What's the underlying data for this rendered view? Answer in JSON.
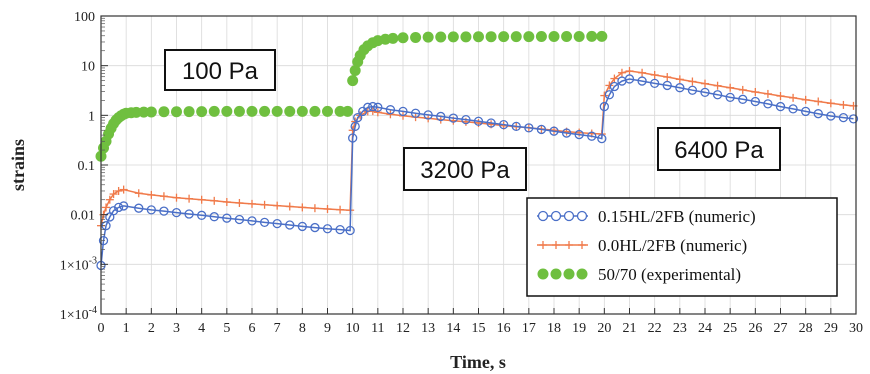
{
  "chart_data": {
    "type": "scatter",
    "title": "",
    "xlabel": "Time, s",
    "ylabel": "strains",
    "xlim": [
      0,
      30
    ],
    "ylim": [
      0.0001,
      100
    ],
    "yscale": "log",
    "xticks": [
      0,
      1,
      2,
      3,
      4,
      5,
      6,
      7,
      8,
      9,
      10,
      11,
      12,
      13,
      14,
      15,
      16,
      17,
      18,
      19,
      20,
      21,
      22,
      23,
      24,
      25,
      26,
      27,
      28,
      29,
      30
    ],
    "yticks": [
      {
        "value": 0.0001,
        "label": "1×10",
        "exp": "-4"
      },
      {
        "value": 0.001,
        "label": "1×10",
        "exp": "-3"
      },
      {
        "value": 0.01,
        "label": "0.01",
        "exp": ""
      },
      {
        "value": 0.1,
        "label": "0.1",
        "exp": ""
      },
      {
        "value": 1,
        "label": "1",
        "exp": ""
      },
      {
        "value": 10,
        "label": "10",
        "exp": ""
      },
      {
        "value": 100,
        "label": "100",
        "exp": ""
      }
    ],
    "grid": true,
    "legend_position": "bottom-right",
    "annotations": [
      "100 Pa",
      "3200 Pa",
      "6400 Pa"
    ],
    "series": [
      {
        "name": "0.15HL/2FB (numeric)",
        "color": "#4a6fc7",
        "marker": "open-circle",
        "points": [
          [
            0.0,
            0.00095
          ],
          [
            0.1,
            0.003
          ],
          [
            0.2,
            0.006
          ],
          [
            0.35,
            0.009
          ],
          [
            0.5,
            0.012
          ],
          [
            0.7,
            0.014
          ],
          [
            0.9,
            0.015
          ],
          [
            1.5,
            0.0135
          ],
          [
            2,
            0.0125
          ],
          [
            2.5,
            0.0118
          ],
          [
            3,
            0.011
          ],
          [
            3.5,
            0.0103
          ],
          [
            4,
            0.0097
          ],
          [
            4.5,
            0.0091
          ],
          [
            5,
            0.0085
          ],
          [
            5.5,
            0.008
          ],
          [
            6,
            0.0075
          ],
          [
            6.5,
            0.007
          ],
          [
            7,
            0.0066
          ],
          [
            7.5,
            0.0062
          ],
          [
            8,
            0.0058
          ],
          [
            8.5,
            0.0055
          ],
          [
            9,
            0.0052
          ],
          [
            9.5,
            0.005
          ],
          [
            9.9,
            0.0048
          ],
          [
            10.0,
            0.35
          ],
          [
            10.1,
            0.6
          ],
          [
            10.2,
            0.9
          ],
          [
            10.4,
            1.2
          ],
          [
            10.6,
            1.45
          ],
          [
            10.8,
            1.5
          ],
          [
            11,
            1.45
          ],
          [
            11.5,
            1.3
          ],
          [
            12,
            1.2
          ],
          [
            12.5,
            1.1
          ],
          [
            13,
            1.02
          ],
          [
            13.5,
            0.95
          ],
          [
            14,
            0.88
          ],
          [
            14.5,
            0.82
          ],
          [
            15,
            0.76
          ],
          [
            15.5,
            0.7
          ],
          [
            16,
            0.65
          ],
          [
            16.5,
            0.6
          ],
          [
            17,
            0.56
          ],
          [
            17.5,
            0.52
          ],
          [
            18,
            0.48
          ],
          [
            18.5,
            0.44
          ],
          [
            19,
            0.41
          ],
          [
            19.5,
            0.38
          ],
          [
            19.9,
            0.34
          ],
          [
            20.0,
            1.5
          ],
          [
            20.2,
            2.6
          ],
          [
            20.4,
            3.8
          ],
          [
            20.7,
            4.9
          ],
          [
            21,
            5.4
          ],
          [
            21.5,
            4.9
          ],
          [
            22,
            4.4
          ],
          [
            22.5,
            4.0
          ],
          [
            23,
            3.6
          ],
          [
            23.5,
            3.2
          ],
          [
            24,
            2.9
          ],
          [
            24.5,
            2.6
          ],
          [
            25,
            2.3
          ],
          [
            25.5,
            2.1
          ],
          [
            26,
            1.9
          ],
          [
            26.5,
            1.7
          ],
          [
            27,
            1.5
          ],
          [
            27.5,
            1.35
          ],
          [
            28,
            1.2
          ],
          [
            28.5,
            1.08
          ],
          [
            29,
            0.97
          ],
          [
            29.5,
            0.9
          ],
          [
            29.9,
            0.85
          ]
        ]
      },
      {
        "name": "0.0HL/2FB (numeric)",
        "color": "#f07a4a",
        "marker": "cross",
        "points": [
          [
            0.0,
            0.006
          ],
          [
            0.1,
            0.01
          ],
          [
            0.2,
            0.014
          ],
          [
            0.35,
            0.02
          ],
          [
            0.5,
            0.026
          ],
          [
            0.7,
            0.03
          ],
          [
            0.9,
            0.032
          ],
          [
            1.5,
            0.027
          ],
          [
            2,
            0.025
          ],
          [
            2.5,
            0.0235
          ],
          [
            3,
            0.022
          ],
          [
            3.5,
            0.021
          ],
          [
            4,
            0.02
          ],
          [
            4.5,
            0.019
          ],
          [
            5,
            0.018
          ],
          [
            5.5,
            0.0172
          ],
          [
            6,
            0.0165
          ],
          [
            6.5,
            0.0158
          ],
          [
            7,
            0.0152
          ],
          [
            7.5,
            0.0146
          ],
          [
            8,
            0.014
          ],
          [
            8.5,
            0.0135
          ],
          [
            9,
            0.013
          ],
          [
            9.5,
            0.0126
          ],
          [
            9.9,
            0.0123
          ],
          [
            10.0,
            0.5
          ],
          [
            10.1,
            0.75
          ],
          [
            10.3,
            1.0
          ],
          [
            10.6,
            1.2
          ],
          [
            10.8,
            1.22
          ],
          [
            11,
            1.15
          ],
          [
            11.5,
            1.05
          ],
          [
            12,
            0.98
          ],
          [
            12.5,
            0.92
          ],
          [
            13,
            0.87
          ],
          [
            13.5,
            0.82
          ],
          [
            14,
            0.78
          ],
          [
            14.5,
            0.74
          ],
          [
            15,
            0.7
          ],
          [
            15.5,
            0.66
          ],
          [
            16,
            0.62
          ],
          [
            16.5,
            0.59
          ],
          [
            17,
            0.56
          ],
          [
            17.5,
            0.53
          ],
          [
            18,
            0.5
          ],
          [
            18.5,
            0.47
          ],
          [
            19,
            0.45
          ],
          [
            19.5,
            0.43
          ],
          [
            19.9,
            0.42
          ],
          [
            20.0,
            2.5
          ],
          [
            20.2,
            4.0
          ],
          [
            20.4,
            5.5
          ],
          [
            20.7,
            7.2
          ],
          [
            21,
            7.8
          ],
          [
            21.5,
            7.2
          ],
          [
            22,
            6.5
          ],
          [
            22.5,
            5.9
          ],
          [
            23,
            5.3
          ],
          [
            23.5,
            4.8
          ],
          [
            24,
            4.35
          ],
          [
            24.5,
            3.95
          ],
          [
            25,
            3.6
          ],
          [
            25.5,
            3.25
          ],
          [
            26,
            2.95
          ],
          [
            26.5,
            2.7
          ],
          [
            27,
            2.45
          ],
          [
            27.5,
            2.25
          ],
          [
            28,
            2.05
          ],
          [
            28.5,
            1.9
          ],
          [
            29,
            1.75
          ],
          [
            29.5,
            1.62
          ],
          [
            29.9,
            1.55
          ]
        ]
      },
      {
        "name": "50/70 (experimental)",
        "color": "#6fbf3f",
        "marker": "filled-circle",
        "points": [
          [
            0.0,
            0.15
          ],
          [
            0.1,
            0.22
          ],
          [
            0.2,
            0.3
          ],
          [
            0.3,
            0.42
          ],
          [
            0.4,
            0.55
          ],
          [
            0.5,
            0.68
          ],
          [
            0.6,
            0.8
          ],
          [
            0.7,
            0.9
          ],
          [
            0.8,
            0.98
          ],
          [
            0.9,
            1.05
          ],
          [
            1.0,
            1.1
          ],
          [
            1.2,
            1.13
          ],
          [
            1.4,
            1.15
          ],
          [
            1.7,
            1.16
          ],
          [
            2,
            1.17
          ],
          [
            2.5,
            1.18
          ],
          [
            3,
            1.18
          ],
          [
            3.5,
            1.19
          ],
          [
            4,
            1.19
          ],
          [
            4.5,
            1.2
          ],
          [
            5,
            1.2
          ],
          [
            5.5,
            1.2
          ],
          [
            6,
            1.2
          ],
          [
            6.5,
            1.2
          ],
          [
            7,
            1.2
          ],
          [
            7.5,
            1.2
          ],
          [
            8,
            1.2
          ],
          [
            8.5,
            1.2
          ],
          [
            9,
            1.2
          ],
          [
            9.5,
            1.2
          ],
          [
            9.8,
            1.2
          ],
          [
            10.0,
            5.0
          ],
          [
            10.1,
            8.0
          ],
          [
            10.2,
            12
          ],
          [
            10.3,
            16
          ],
          [
            10.45,
            21
          ],
          [
            10.6,
            25
          ],
          [
            10.8,
            29
          ],
          [
            11,
            32
          ],
          [
            11.3,
            34
          ],
          [
            11.6,
            35.5
          ],
          [
            12,
            36.5
          ],
          [
            12.5,
            37
          ],
          [
            13,
            37.5
          ],
          [
            13.5,
            37.8
          ],
          [
            14,
            38
          ],
          [
            14.5,
            38
          ],
          [
            15,
            38.2
          ],
          [
            15.5,
            38.3
          ],
          [
            16,
            38.4
          ],
          [
            16.5,
            38.5
          ],
          [
            17,
            38.5
          ],
          [
            17.5,
            38.6
          ],
          [
            18,
            38.6
          ],
          [
            18.5,
            38.7
          ],
          [
            19,
            38.7
          ],
          [
            19.5,
            38.8
          ],
          [
            19.9,
            38.8
          ]
        ]
      }
    ]
  }
}
